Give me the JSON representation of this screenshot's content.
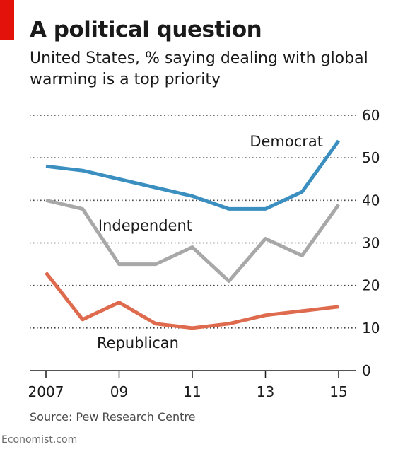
{
  "header": {
    "title": "A political question",
    "subtitle": "United States, % saying dealing with global warming is a top priority"
  },
  "footer": {
    "source": "Source: Pew Research Centre",
    "credit": "Economist.com"
  },
  "colors": {
    "democrat": "#3a8fc0",
    "independent": "#a8a8a8",
    "republican": "#de6b4e",
    "grid": "#444444",
    "accent": "#e3120b"
  },
  "chart_data": {
    "type": "line",
    "x": [
      2007,
      2008,
      2009,
      2010,
      2011,
      2012,
      2013,
      2014,
      2015
    ],
    "x_tick_values": [
      2007,
      2009,
      2011,
      2013,
      2015
    ],
    "x_tick_labels": [
      "2007",
      "09",
      "11",
      "13",
      "15"
    ],
    "y_ticks": [
      0,
      10,
      20,
      30,
      40,
      50,
      60
    ],
    "ylim": [
      0,
      60
    ],
    "xlim": [
      2007,
      2015
    ],
    "grid": true,
    "y_axis_side": "right",
    "series": [
      {
        "name": "Democrat",
        "color": "#3a8fc0",
        "values": [
          48,
          47,
          45,
          43,
          41,
          38,
          38,
          42,
          54
        ]
      },
      {
        "name": "Independent",
        "color": "#a8a8a8",
        "values": [
          40,
          38,
          25,
          25,
          29,
          21,
          31,
          27,
          39
        ]
      },
      {
        "name": "Republican",
        "color": "#de6b4e",
        "values": [
          23,
          12,
          16,
          11,
          10,
          11,
          13,
          14,
          15
        ]
      }
    ]
  }
}
